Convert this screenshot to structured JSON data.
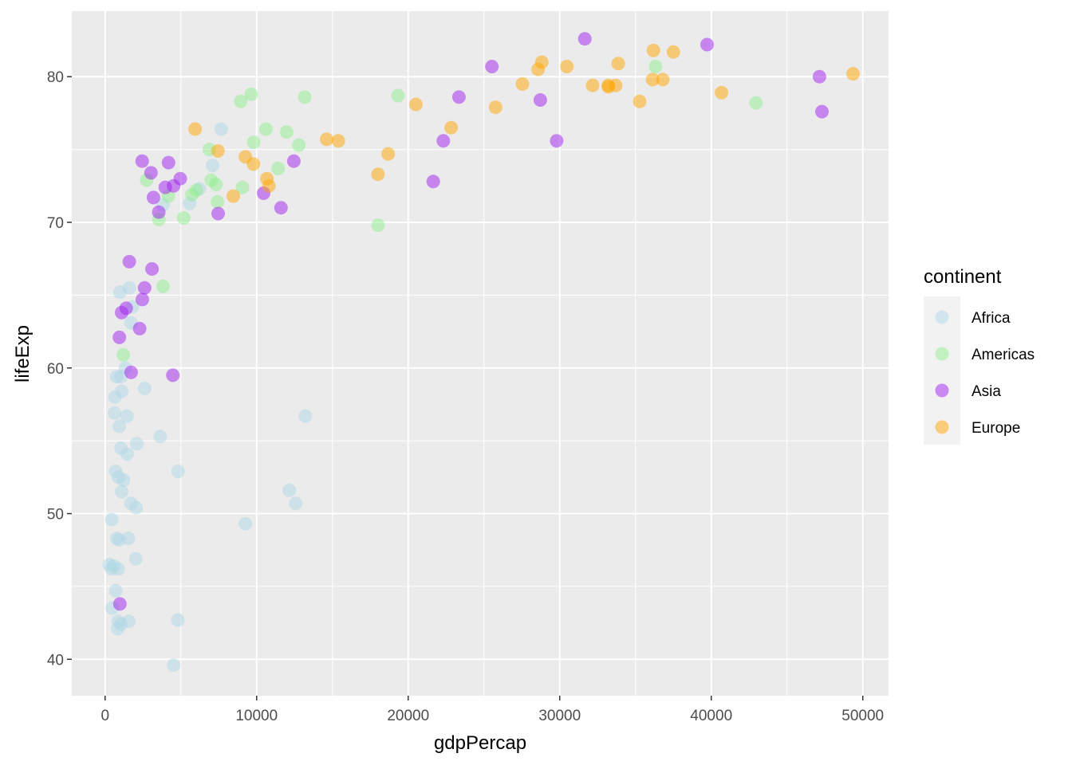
{
  "chart_data": {
    "type": "scatter",
    "title": "",
    "xlabel": "gdpPercap",
    "ylabel": "lifeExp",
    "xlim": [
      -2200,
      51700
    ],
    "ylim": [
      37.5,
      84.5
    ],
    "x_ticks": [
      0,
      10000,
      20000,
      30000,
      40000,
      50000
    ],
    "x_tick_labels": [
      "0",
      "10000",
      "20000",
      "30000",
      "40000",
      "50000"
    ],
    "y_ticks": [
      40,
      50,
      60,
      70,
      80
    ],
    "y_tick_labels": [
      "40",
      "50",
      "60",
      "70",
      "80"
    ],
    "grid": true,
    "point_alpha": 0.5,
    "background": "#ebebeb",
    "legend": {
      "title": "continent",
      "position": "right"
    },
    "series": [
      {
        "name": "Africa",
        "color": "#add8e6",
        "points": [
          [
            6223,
            72.3
          ],
          [
            4797,
            42.7
          ],
          [
            1441,
            56.7
          ],
          [
            12570,
            50.7
          ],
          [
            1217,
            52.3
          ],
          [
            430,
            49.6
          ],
          [
            2042,
            50.4
          ],
          [
            706,
            44.7
          ],
          [
            1704,
            50.7
          ],
          [
            986,
            65.2
          ],
          [
            277,
            46.5
          ],
          [
            3633,
            55.3
          ],
          [
            1545,
            48.3
          ],
          [
            2082,
            54.8
          ],
          [
            5581,
            71.3
          ],
          [
            12154,
            51.6
          ],
          [
            641,
            58.0
          ],
          [
            691,
            52.9
          ],
          [
            13206,
            56.7
          ],
          [
            753,
            59.4
          ],
          [
            1328,
            60.0
          ],
          [
            943,
            56.0
          ],
          [
            579,
            46.4
          ],
          [
            1463,
            54.1
          ],
          [
            1569,
            42.6
          ],
          [
            415,
            46.2
          ],
          [
            9254,
            49.3
          ],
          [
            1045,
            59.4
          ],
          [
            759,
            48.3
          ],
          [
            1042,
            54.5
          ],
          [
            1803,
            64.2
          ],
          [
            7092,
            73.9
          ],
          [
            3820,
            71.2
          ],
          [
            824,
            42.1
          ],
          [
            4811,
            52.9
          ],
          [
            620,
            56.9
          ],
          [
            2014,
            46.9
          ],
          [
            7670,
            76.4
          ],
          [
            863,
            46.2
          ],
          [
            1598,
            65.5
          ],
          [
            1712,
            63.1
          ],
          [
            862,
            42.6
          ],
          [
            926,
            48.2
          ],
          [
            4513,
            39.6
          ],
          [
            1093,
            51.5
          ],
          [
            1107,
            58.4
          ],
          [
            883,
            52.5
          ],
          [
            469,
            43.5
          ],
          [
            1056,
            42.4
          ],
          [
            2605,
            58.6
          ]
        ]
      },
      {
        "name": "Americas",
        "color": "#90ee90",
        "points": [
          [
            12779,
            75.3
          ],
          [
            3822,
            65.6
          ],
          [
            9066,
            72.4
          ],
          [
            36319,
            80.7
          ],
          [
            13172,
            78.6
          ],
          [
            7007,
            72.9
          ],
          [
            9645,
            78.8
          ],
          [
            8948,
            78.3
          ],
          [
            6025,
            72.2
          ],
          [
            6873,
            75.0
          ],
          [
            5728,
            71.9
          ],
          [
            5186,
            70.3
          ],
          [
            1202,
            60.9
          ],
          [
            3548,
            70.2
          ],
          [
            7321,
            72.6
          ],
          [
            11978,
            76.2
          ],
          [
            2749,
            72.9
          ],
          [
            9809,
            75.5
          ],
          [
            4173,
            71.8
          ],
          [
            7409,
            71.4
          ],
          [
            19329,
            78.7
          ],
          [
            18008,
            69.8
          ],
          [
            42952,
            78.2
          ],
          [
            10611,
            76.4
          ],
          [
            11416,
            73.7
          ]
        ]
      },
      {
        "name": "Asia",
        "color": "#a020f0",
        "points": [
          [
            975,
            43.8
          ],
          [
            29796,
            75.6
          ],
          [
            1391,
            64.1
          ],
          [
            1714,
            59.7
          ],
          [
            4959,
            73.0
          ],
          [
            39725,
            82.2
          ],
          [
            2452,
            64.7
          ],
          [
            3541,
            70.7
          ],
          [
            11606,
            71.0
          ],
          [
            4471,
            59.5
          ],
          [
            25523,
            80.7
          ],
          [
            31656,
            82.6
          ],
          [
            4519,
            72.5
          ],
          [
            1593,
            67.3
          ],
          [
            23348,
            78.6
          ],
          [
            47307,
            77.6
          ],
          [
            10461,
            72.0
          ],
          [
            12452,
            74.2
          ],
          [
            3096,
            66.8
          ],
          [
            944,
            62.1
          ],
          [
            1091,
            63.8
          ],
          [
            22316,
            75.6
          ],
          [
            2606,
            65.5
          ],
          [
            2282,
            62.7
          ],
          [
            3190,
            71.7
          ],
          [
            21655,
            72.8
          ],
          [
            47143,
            80.0
          ],
          [
            3970,
            72.4
          ],
          [
            4185,
            74.1
          ],
          [
            28718,
            78.4
          ],
          [
            7458,
            70.6
          ],
          [
            2442,
            74.2
          ],
          [
            3025,
            73.4
          ]
        ]
      },
      {
        "name": "Europe",
        "color": "#ffa500",
        "points": [
          [
            5937,
            76.4
          ],
          [
            36126,
            79.8
          ],
          [
            33693,
            79.4
          ],
          [
            7446,
            74.9
          ],
          [
            10681,
            73.0
          ],
          [
            14619,
            75.7
          ],
          [
            22833,
            76.5
          ],
          [
            35278,
            78.3
          ],
          [
            33207,
            79.3
          ],
          [
            30470,
            80.7
          ],
          [
            32170,
            79.4
          ],
          [
            27538,
            79.5
          ],
          [
            18009,
            73.3
          ],
          [
            36181,
            81.8
          ],
          [
            40676,
            78.9
          ],
          [
            28570,
            80.5
          ],
          [
            9254,
            74.5
          ],
          [
            36798,
            79.8
          ],
          [
            49357,
            80.2
          ],
          [
            15390,
            75.6
          ],
          [
            20510,
            78.1
          ],
          [
            10808,
            72.5
          ],
          [
            9787,
            74.0
          ],
          [
            18678,
            74.7
          ],
          [
            25768,
            77.9
          ],
          [
            28821,
            81.0
          ],
          [
            33860,
            80.9
          ],
          [
            37506,
            81.7
          ],
          [
            8458,
            71.8
          ],
          [
            33203,
            79.4
          ]
        ]
      }
    ]
  }
}
